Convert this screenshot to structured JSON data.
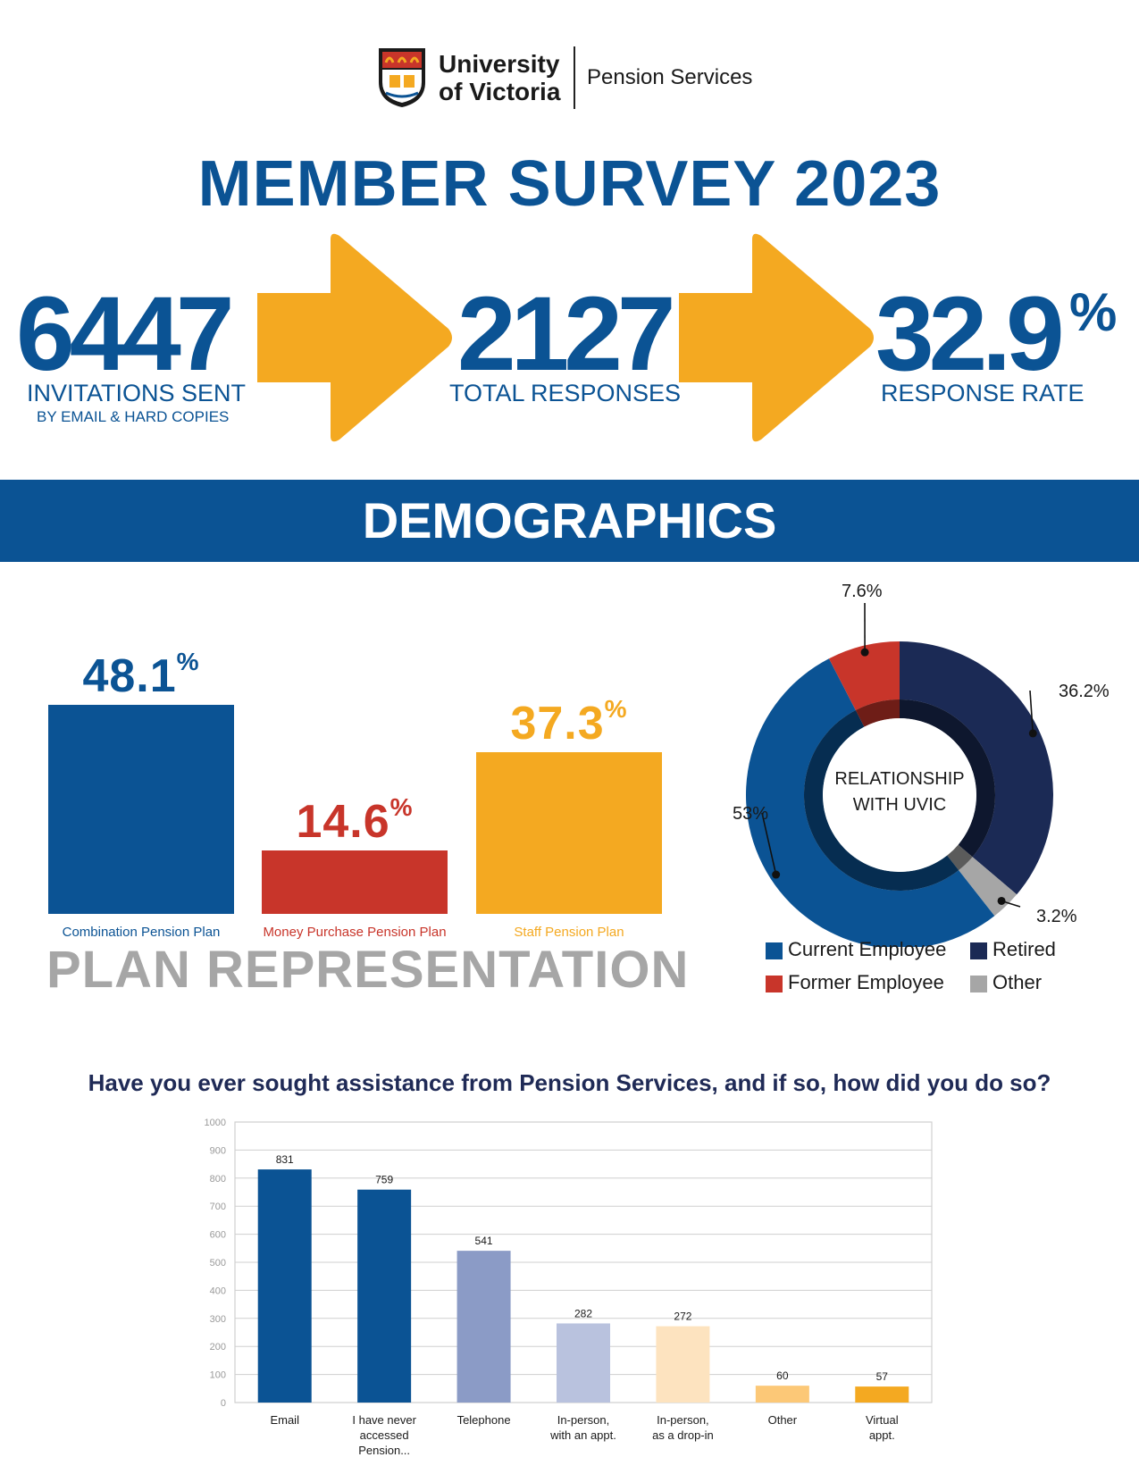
{
  "header": {
    "university_name_line1": "University",
    "university_name_line2": "of Victoria",
    "department": "Pension Services",
    "title": "MEMBER SURVEY 2023"
  },
  "stats": [
    {
      "value": "6447",
      "label": "INVITATIONS SENT",
      "sub": "BY EMAIL & HARD COPIES"
    },
    {
      "value": "2127",
      "label": "TOTAL RESPONSES"
    },
    {
      "value": "32.9",
      "suffix": "%",
      "label": "RESPONSE RATE"
    }
  ],
  "demographics_title": "DEMOGRAPHICS",
  "plan_representation": {
    "title": "PLAN REPRESENTATION",
    "plans": [
      {
        "name": "Combination Pension Plan",
        "pct": "48.1",
        "value": 48.1,
        "color": "#0b5394"
      },
      {
        "name": "Money Purchase Pension Plan",
        "pct": "14.6",
        "value": 14.6,
        "color": "#c8352a"
      },
      {
        "name": "Staff Pension Plan",
        "pct": "37.3",
        "value": 37.3,
        "color": "#f4a921"
      }
    ],
    "pct_symbol": "%"
  },
  "relationship": {
    "center_line1": "RELATIONSHIP",
    "center_line2": "WITH UVIC",
    "slices": [
      {
        "name": "Retired",
        "label": "36.2%",
        "value": 36.2,
        "color": "#1b2a55"
      },
      {
        "name": "Other",
        "label": "3.2%",
        "value": 3.2,
        "color": "#a6a6a6"
      },
      {
        "name": "Current Employee",
        "label": "53%",
        "value": 53,
        "color": "#0b5394"
      },
      {
        "name": "Former Employee",
        "label": "7.6%",
        "value": 7.6,
        "color": "#c8352a"
      }
    ]
  },
  "question": "Have you ever sought assistance from Pension Services, and if so, how did you do so?",
  "chart_data": {
    "type": "bar",
    "categories": [
      [
        "Email"
      ],
      [
        "I have never",
        "accessed",
        "Pension..."
      ],
      [
        "Telephone"
      ],
      [
        "In-person,",
        "with an appt."
      ],
      [
        "In-person,",
        "as a drop-in"
      ],
      [
        "Other"
      ],
      [
        "Virtual",
        "appt."
      ]
    ],
    "values": [
      831,
      759,
      541,
      282,
      272,
      60,
      57
    ],
    "colors": [
      "#0b5394",
      "#0b5394",
      "#8b9bc6",
      "#b9c2de",
      "#fde3bf",
      "#fcc877",
      "#f4a921"
    ],
    "ylim": [
      0,
      1000
    ],
    "yticks": [
      0,
      100,
      200,
      300,
      400,
      500,
      600,
      700,
      800,
      900,
      1000
    ],
    "grid": true
  }
}
